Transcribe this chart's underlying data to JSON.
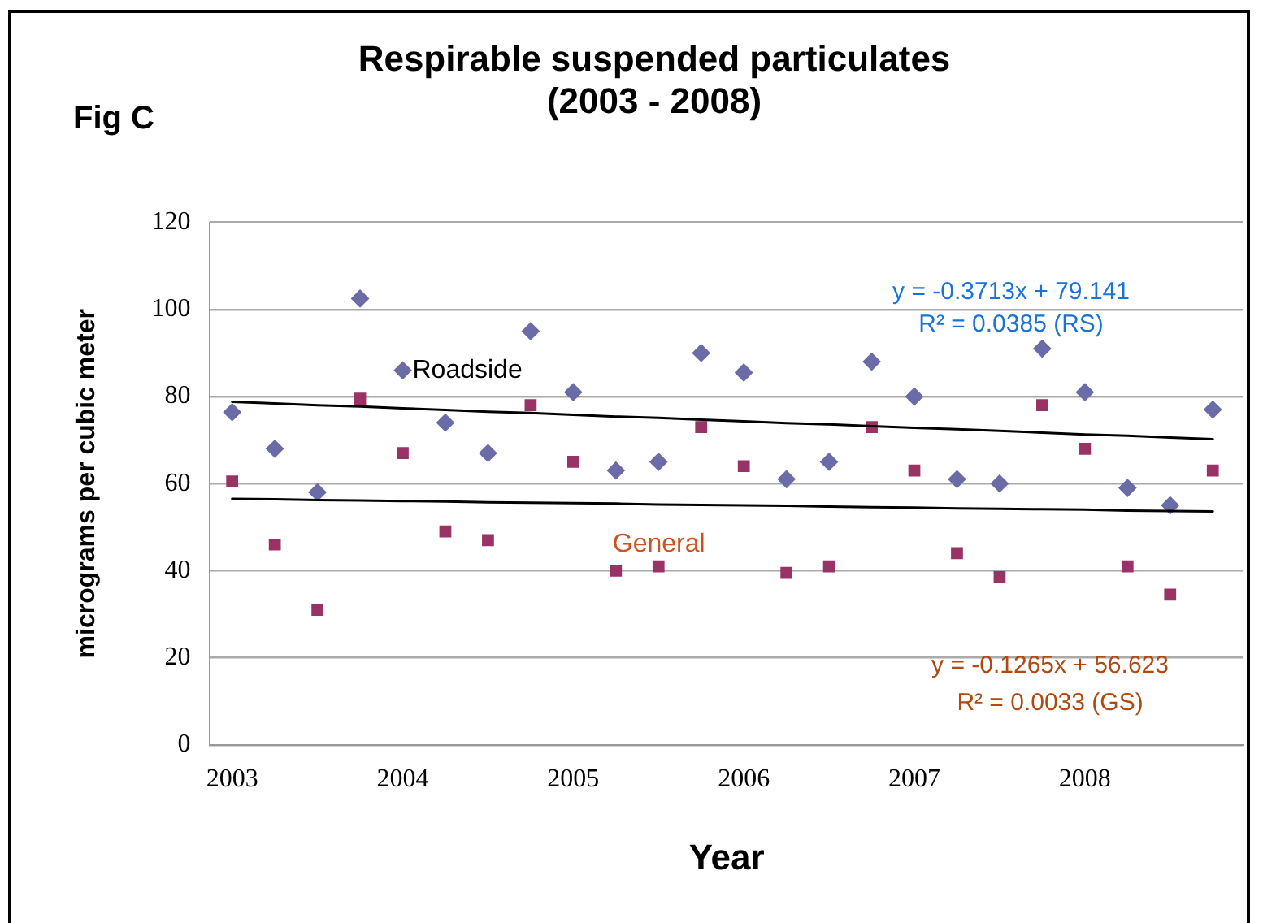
{
  "chart_data": {
    "type": "scatter",
    "title": "Respirable suspended particulates\n(2003 - 2008)",
    "xlabel": "Year",
    "ylabel": "micrograms per cubic meter",
    "x": [
      2003,
      2003.25,
      2003.5,
      2003.75,
      2004,
      2004.25,
      2004.5,
      2004.75,
      2005,
      2005.25,
      2005.5,
      2005.75,
      2006,
      2006.25,
      2006.5,
      2006.75,
      2007,
      2007.25,
      2007.5,
      2007.75,
      2008,
      2008.25,
      2008.5,
      2008.75
    ],
    "series": [
      {
        "name": "Roadside",
        "color": "#6b6ba8",
        "marker": "diamond",
        "values": [
          76.4,
          68,
          58,
          102.5,
          86,
          74,
          67,
          95,
          81,
          63,
          65,
          90,
          85.5,
          61,
          65,
          88,
          80,
          61,
          60,
          91,
          81,
          59,
          55,
          77
        ]
      },
      {
        "name": "General",
        "color": "#993366",
        "marker": "square",
        "values": [
          60.5,
          46,
          31,
          79.5,
          67,
          49,
          47,
          78,
          65,
          40,
          41,
          73,
          64,
          39.5,
          41,
          73,
          63,
          44,
          38.5,
          78,
          68,
          41,
          34.5,
          63
        ]
      },
      {
        "type": "line",
        "color": "#000000",
        "marker": "none",
        "values": [
          78.8,
          78.4,
          78.0,
          77.7,
          77.3,
          76.9,
          76.5,
          76.2,
          75.8,
          75.4,
          75.1,
          74.7,
          74.3,
          73.9,
          73.6,
          73.2,
          72.8,
          72.5,
          72.1,
          71.7,
          71.3,
          71.0,
          70.6,
          70.2
        ]
      },
      {
        "type": "line",
        "color": "#000000",
        "marker": "none",
        "values": [
          56.5,
          56.4,
          56.2,
          56.1,
          56.0,
          55.9,
          55.7,
          55.6,
          55.5,
          55.4,
          55.2,
          55.1,
          55.0,
          54.9,
          54.7,
          54.6,
          54.5,
          54.3,
          54.2,
          54.1,
          54.0,
          53.8,
          53.7,
          53.6
        ]
      }
    ],
    "annotations": [
      "Fig C",
      "y = -0.3713x + 79.141",
      "R² = 0.0385 (RS)",
      "y = -0.1265x + 56.623",
      "R² = 0.0033 (GS)"
    ],
    "xlim": [
      2002.87,
      2008.93
    ],
    "xticks": [
      2003,
      2004,
      2005,
      2006,
      2007,
      2008
    ],
    "ylim": [
      0,
      120
    ],
    "yticks": [
      0,
      20,
      40,
      60,
      80,
      100,
      120
    ],
    "grid": "y",
    "legend": false
  }
}
